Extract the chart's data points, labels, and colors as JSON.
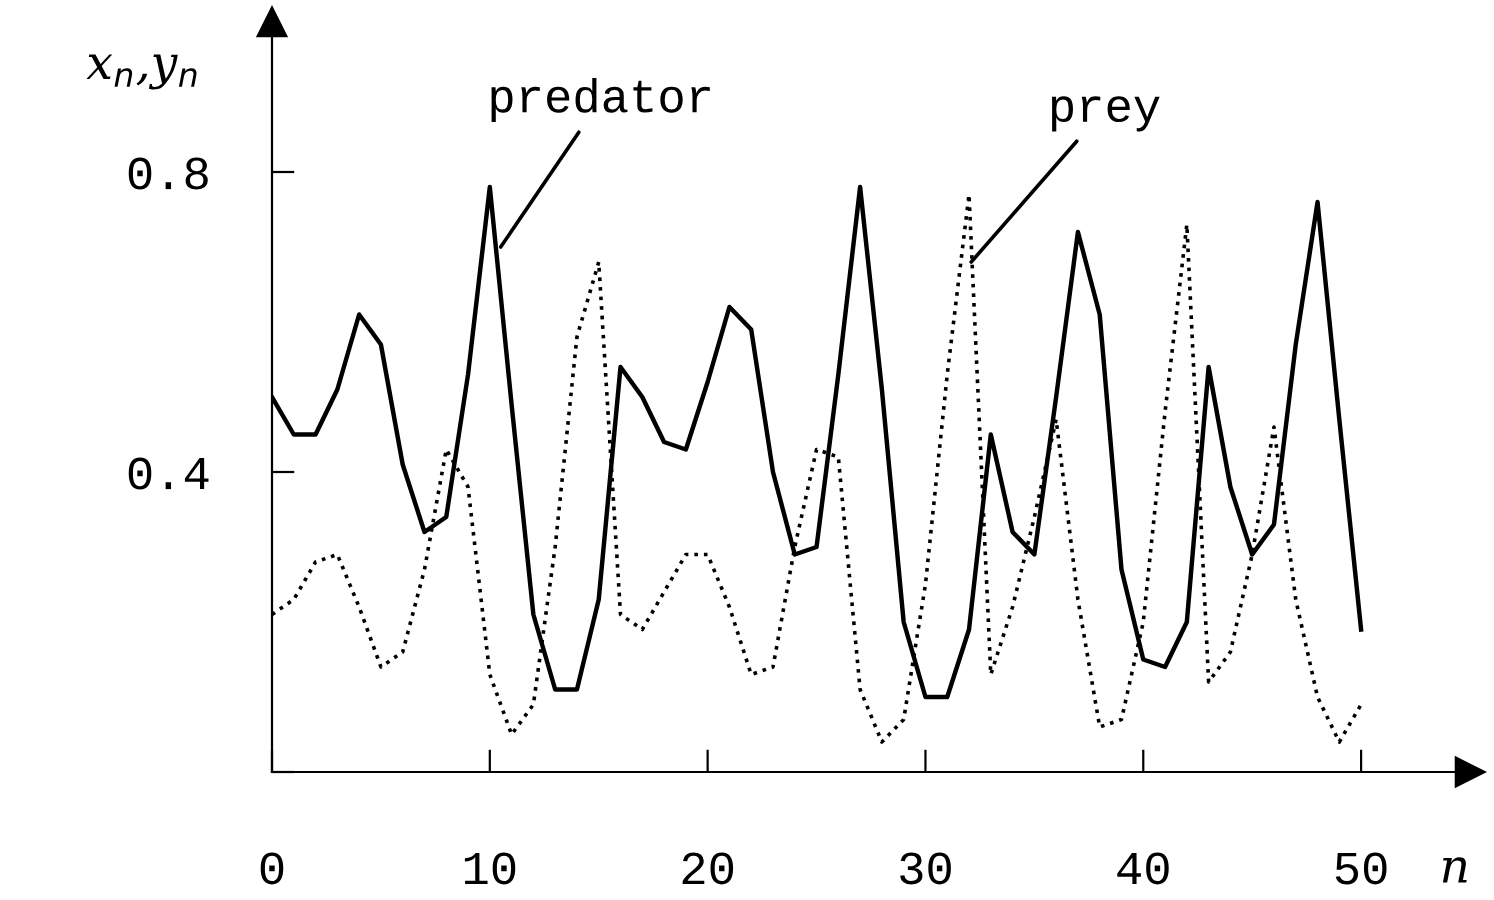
{
  "chart_data": {
    "type": "line",
    "xlabel": "n",
    "ylabel": "x$_{n}$,y$_{n}$",
    "x": [
      0,
      1,
      2,
      3,
      4,
      5,
      6,
      7,
      8,
      9,
      10,
      11,
      12,
      13,
      14,
      15,
      16,
      17,
      18,
      19,
      20,
      21,
      22,
      23,
      24,
      25,
      26,
      27,
      28,
      29,
      30,
      31,
      32,
      33,
      34,
      35,
      36,
      37,
      38,
      39,
      40,
      41,
      42,
      43,
      44,
      45,
      46,
      47,
      48,
      49,
      50
    ],
    "series": [
      {
        "color": "#000000",
        "line_style": "solid",
        "values": [
          0.5,
          0.45,
          0.45,
          0.51,
          0.61,
          0.57,
          0.41,
          0.32,
          0.34,
          0.53,
          0.78,
          0.49,
          0.21,
          0.11,
          0.11,
          0.23,
          0.54,
          0.5,
          0.44,
          0.43,
          0.52,
          0.62,
          0.59,
          0.4,
          0.29,
          0.3,
          0.53,
          0.78,
          0.51,
          0.2,
          0.1,
          0.1,
          0.19,
          0.45,
          0.32,
          0.29,
          0.5,
          0.72,
          0.61,
          0.27,
          0.15,
          0.14,
          0.2,
          0.54,
          0.38,
          0.29,
          0.33,
          0.57,
          0.76,
          0.47,
          0.19
        ]
      },
      {
        "color": "#000000",
        "line_style": "dotted",
        "values": [
          0.21,
          0.23,
          0.28,
          0.29,
          0.22,
          0.14,
          0.16,
          0.27,
          0.43,
          0.38,
          0.13,
          0.05,
          0.09,
          0.3,
          0.58,
          0.68,
          0.21,
          0.19,
          0.24,
          0.29,
          0.29,
          0.22,
          0.13,
          0.14,
          0.3,
          0.43,
          0.42,
          0.11,
          0.04,
          0.07,
          0.25,
          0.53,
          0.77,
          0.13,
          0.22,
          0.34,
          0.47,
          0.23,
          0.06,
          0.07,
          0.2,
          0.48,
          0.73,
          0.12,
          0.16,
          0.29,
          0.46,
          0.23,
          0.1,
          0.04,
          0.09
        ]
      }
    ],
    "annotations": [
      {
        "text": "predator",
        "x": 10.5,
        "y": 0.7
      },
      {
        "text": "prey",
        "x": 32.1,
        "y": 0.68
      }
    ],
    "xlim": [
      0,
      55
    ],
    "ylim": [
      0,
      1.0
    ],
    "xticks": [
      0,
      10,
      20,
      30,
      40,
      50
    ],
    "yticks": [
      {
        "value": 0,
        "label": null
      },
      0.4,
      0.8
    ],
    "marker": "none",
    "grid": false,
    "legend": false
  }
}
